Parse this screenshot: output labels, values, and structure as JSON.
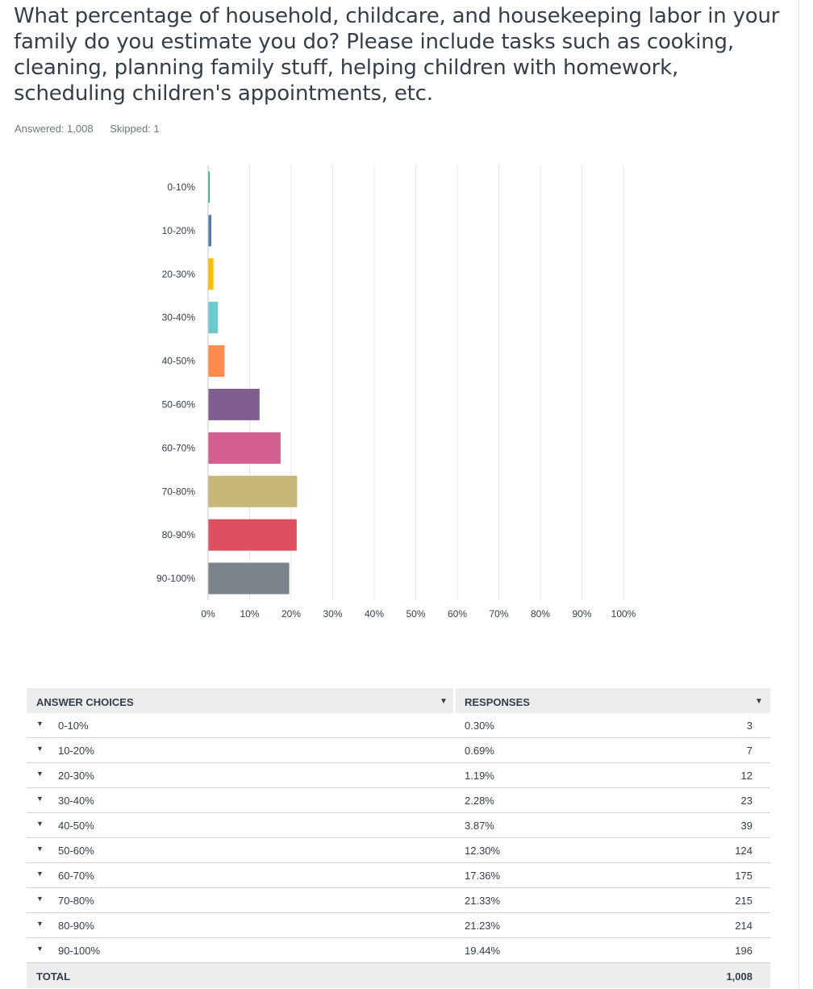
{
  "question": {
    "title": "What percentage of household, childcare, and housekeeping labor in your family do you estimate you do? Please include tasks such as cooking, cleaning, planning family stuff, helping children with homework, scheduling children's appointments, etc.",
    "answered": "Answered: 1,008",
    "skipped": "Skipped: 1"
  },
  "chart_data": {
    "type": "bar",
    "orientation": "horizontal",
    "categories": [
      "0-10%",
      "10-20%",
      "20-30%",
      "30-40%",
      "40-50%",
      "50-60%",
      "60-70%",
      "70-80%",
      "80-90%",
      "90-100%"
    ],
    "values": [
      0.3,
      0.69,
      1.19,
      2.28,
      3.87,
      12.3,
      17.36,
      21.33,
      21.23,
      19.44
    ],
    "colors": [
      "#00bf6f",
      "#507cb6",
      "#f9be00",
      "#6bc8cd",
      "#ff8b4f",
      "#7f5f90",
      "#d25f90",
      "#c7b879",
      "#de4f5f",
      "#7b848c"
    ],
    "xlim": [
      0,
      100
    ],
    "xticks": [
      "0%",
      "10%",
      "20%",
      "30%",
      "40%",
      "50%",
      "60%",
      "70%",
      "80%",
      "90%",
      "100%"
    ],
    "title": "",
    "xlabel": "",
    "ylabel": "",
    "grid": true
  },
  "table": {
    "headers": {
      "choices": "ANSWER CHOICES",
      "responses": "RESPONSES"
    },
    "rows": [
      {
        "label": "0-10%",
        "pct": "0.30%",
        "count": "3"
      },
      {
        "label": "10-20%",
        "pct": "0.69%",
        "count": "7"
      },
      {
        "label": "20-30%",
        "pct": "1.19%",
        "count": "12"
      },
      {
        "label": "30-40%",
        "pct": "2.28%",
        "count": "23"
      },
      {
        "label": "40-50%",
        "pct": "3.87%",
        "count": "39"
      },
      {
        "label": "50-60%",
        "pct": "12.30%",
        "count": "124"
      },
      {
        "label": "60-70%",
        "pct": "17.36%",
        "count": "175"
      },
      {
        "label": "70-80%",
        "pct": "21.33%",
        "count": "215"
      },
      {
        "label": "80-90%",
        "pct": "21.23%",
        "count": "214"
      },
      {
        "label": "90-100%",
        "pct": "19.44%",
        "count": "196"
      }
    ],
    "total_label": "TOTAL",
    "total_count": "1,008"
  }
}
